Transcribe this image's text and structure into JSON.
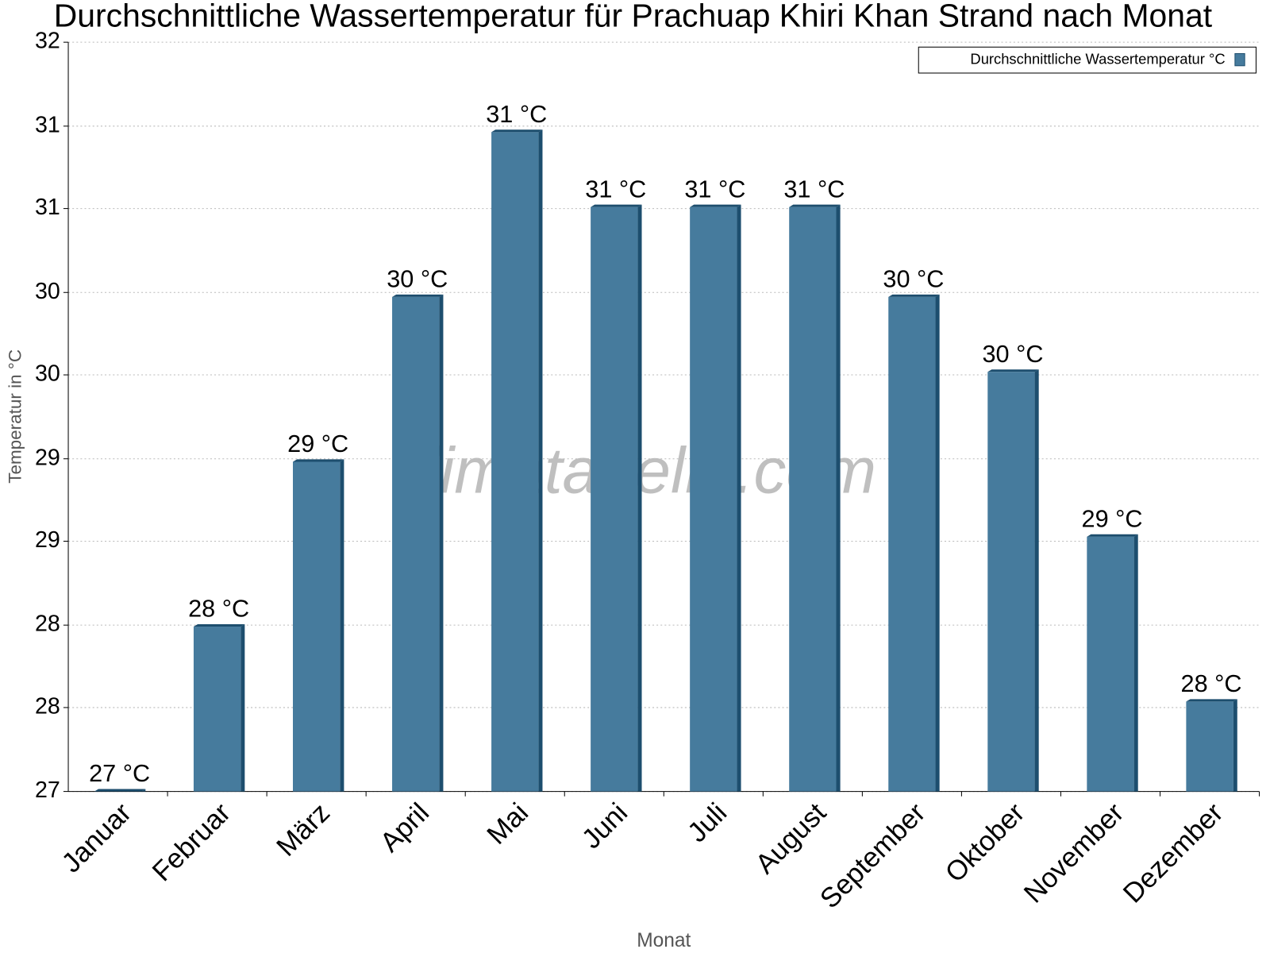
{
  "chart_data": {
    "type": "bar",
    "title": "Durchschnittliche Wassertemperatur für Prachuap Khiri Khan Strand nach Monat",
    "watermark": "klimatabelle.com",
    "x_label": "Monat",
    "y_label": "Temperatur in °C",
    "categories": [
      "Januar",
      "Februar",
      "März",
      "April",
      "Mai",
      "Juni",
      "Juli",
      "August",
      "September",
      "Oktober",
      "November",
      "Dezember"
    ],
    "series": [
      {
        "name": "Durchschnittliche Wassertemperatur °C",
        "color": "#467b9d",
        "values": [
          27,
          28.1,
          29.2,
          30.3,
          31.4,
          30.9,
          30.9,
          30.9,
          30.3,
          29.8,
          28.7,
          27.6
        ],
        "value_labels": [
          "27 °C",
          "28 °C",
          "29 °C",
          "30 °C",
          "31 °C",
          "31 °C",
          "31 °C",
          "31 °C",
          "30 °C",
          "30 °C",
          "29 °C",
          "28 °C"
        ]
      }
    ],
    "ylim": [
      27,
      32
    ],
    "yticks": [
      27,
      {
        "value": 27.56,
        "label": "28"
      },
      {
        "value": 28.11,
        "label": "28"
      },
      {
        "value": 28.67,
        "label": "29"
      },
      {
        "value": 29.22,
        "label": "29"
      },
      {
        "value": 29.78,
        "label": "30"
      },
      {
        "value": 30.33,
        "label": "30"
      },
      {
        "value": 30.89,
        "label": "31"
      },
      {
        "value": 31.44,
        "label": "31"
      },
      32
    ],
    "grid": true,
    "legend": "top-right"
  }
}
